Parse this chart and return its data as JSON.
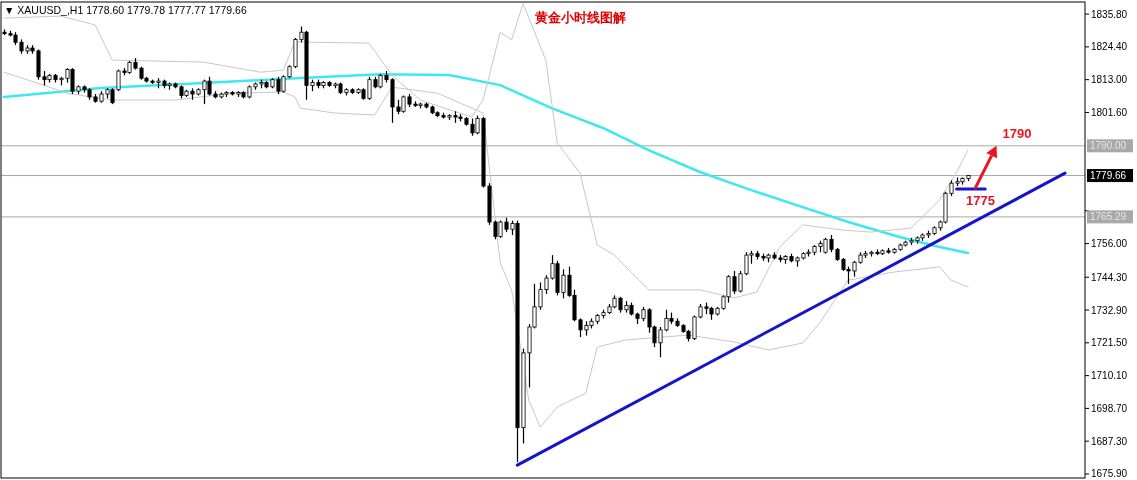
{
  "chart_data": {
    "type": "candlestick",
    "title": "黄金小时线图解",
    "annotations": [
      "▼ XAUUSD_,H1  1778.60 1779.78 1777.77 1779.66",
      {
        "text": "1790",
        "y": 1790
      },
      {
        "text": "1775",
        "y": 1775
      }
    ],
    "categories": [
      null,
      null,
      null,
      null,
      null,
      null,
      null,
      null,
      null,
      null,
      null,
      null,
      null,
      null,
      null,
      null,
      null,
      null,
      null,
      null,
      null,
      null,
      null,
      null,
      null,
      null,
      null,
      null,
      null,
      null,
      null,
      null,
      null,
      null,
      null,
      null,
      null,
      null,
      null,
      null,
      null,
      null,
      null,
      null,
      null,
      null,
      null,
      null,
      null,
      null,
      null,
      null,
      null,
      null,
      null,
      null,
      null,
      null,
      null,
      null,
      null,
      null,
      null,
      null,
      null,
      null,
      null,
      null,
      null,
      null,
      null,
      null,
      null,
      null,
      null,
      null,
      null,
      null,
      null,
      null,
      null,
      null,
      null,
      null,
      null,
      null,
      null,
      null,
      null,
      null,
      null,
      null,
      null,
      null,
      null,
      null,
      null,
      null,
      null,
      null,
      null,
      null,
      null,
      null,
      null,
      null,
      null,
      null,
      null,
      null,
      null,
      null,
      null,
      null,
      null,
      null,
      null,
      null,
      null,
      null,
      null,
      null,
      null,
      null,
      null,
      null,
      null,
      null,
      null,
      null,
      null,
      null,
      null,
      null,
      null,
      null,
      null,
      null,
      null,
      null,
      null,
      null,
      null,
      null,
      null,
      null,
      null,
      null,
      null,
      null,
      null,
      null,
      null,
      null,
      null,
      null,
      null,
      null,
      null,
      null,
      null,
      null,
      null,
      null,
      null,
      null,
      null,
      null,
      null,
      null,
      null,
      null,
      null,
      null,
      null,
      null,
      null,
      null,
      null,
      null,
      null,
      null,
      null,
      null,
      null,
      null,
      null,
      null,
      null,
      null
    ],
    "ohlc": [
      [
        1829.5,
        1830.5,
        1828.5,
        1829.0
      ],
      [
        1829,
        1830,
        1828,
        1828.5
      ],
      [
        1828.5,
        1829.5,
        1825,
        1826
      ],
      [
        1826,
        1827,
        1822,
        1823
      ],
      [
        1823,
        1825,
        1822,
        1824
      ],
      [
        1824,
        1825,
        1822,
        1823
      ],
      [
        1823,
        1823.5,
        1813,
        1814
      ],
      [
        1814,
        1816,
        1811,
        1813
      ],
      [
        1813,
        1815,
        1812,
        1814.5
      ],
      [
        1814.5,
        1815,
        1812,
        1813
      ],
      [
        1813,
        1814,
        1811,
        1813.5
      ],
      [
        1813.5,
        1817,
        1812,
        1816.5
      ],
      [
        1816.5,
        1817,
        1808,
        1809
      ],
      [
        1809,
        1811,
        1808,
        1810.5
      ],
      [
        1810.5,
        1811,
        1808.5,
        1809.5
      ],
      [
        1809.5,
        1810,
        1806,
        1807
      ],
      [
        1807,
        1808,
        1805,
        1805.5
      ],
      [
        1805.5,
        1809,
        1805,
        1808
      ],
      [
        1808,
        1810,
        1806.5,
        1809.5
      ],
      [
        1809.5,
        1810,
        1804.5,
        1805
      ],
      [
        1809.5,
        1816.5,
        1809,
        1816
      ],
      [
        1816,
        1817,
        1814.5,
        1815.5
      ],
      [
        1815.5,
        1819.5,
        1815,
        1819
      ],
      [
        1819,
        1820.5,
        1816.5,
        1817
      ],
      [
        1817,
        1817.5,
        1813,
        1813.5
      ],
      [
        1813.5,
        1814,
        1812,
        1812.5
      ],
      [
        1812.5,
        1813,
        1811.5,
        1812
      ],
      [
        1812,
        1813.5,
        1810,
        1812.5
      ],
      [
        1812.5,
        1813,
        1810,
        1811
      ],
      [
        1811,
        1812,
        1809.5,
        1811.5
      ],
      [
        1811.5,
        1812,
        1810,
        1810.5
      ],
      [
        1810.5,
        1811,
        1806.5,
        1807.5
      ],
      [
        1807.5,
        1809.5,
        1807,
        1809
      ],
      [
        1809,
        1810,
        1806,
        1808
      ],
      [
        1808,
        1810,
        1807.5,
        1809.5
      ],
      [
        1809.5,
        1813,
        1804.5,
        1812.5
      ],
      [
        1812.5,
        1814,
        1807.5,
        1808
      ],
      [
        1808,
        1809,
        1806.5,
        1807
      ],
      [
        1807,
        1808.5,
        1806.5,
        1808
      ],
      [
        1808,
        1809,
        1807,
        1808.5
      ],
      [
        1808.5,
        1809,
        1807.5,
        1808
      ],
      [
        1808,
        1809,
        1807,
        1808.5
      ],
      [
        1808.5,
        1809,
        1806.5,
        1807
      ],
      [
        1807,
        1811,
        1806.5,
        1810.5
      ],
      [
        1810.5,
        1812,
        1809.5,
        1811.5
      ],
      [
        1811.5,
        1813,
        1810,
        1812
      ],
      [
        1812,
        1812.5,
        1810,
        1810.5
      ],
      [
        1810.5,
        1813.5,
        1810,
        1813
      ],
      [
        1813,
        1814,
        1808,
        1809
      ],
      [
        1809,
        1814.5,
        1808.5,
        1814
      ],
      [
        1814,
        1818,
        1813.5,
        1817.5
      ],
      [
        1817.5,
        1827.5,
        1817,
        1827
      ],
      [
        1827,
        1831.5,
        1826,
        1829.5
      ],
      [
        1829.5,
        1830,
        1806,
        1811
      ],
      [
        1811,
        1813,
        1809,
        1812
      ],
      [
        1812,
        1813,
        1810,
        1811
      ],
      [
        1811,
        1812.5,
        1810,
        1812
      ],
      [
        1812,
        1812.5,
        1810.5,
        1811
      ],
      [
        1811,
        1812,
        1810,
        1811.5
      ],
      [
        1811.5,
        1812,
        1808,
        1808.5
      ],
      [
        1808.5,
        1810,
        1807.5,
        1809.5
      ],
      [
        1809.5,
        1810,
        1808,
        1808.5
      ],
      [
        1808.5,
        1810,
        1808,
        1809.5
      ],
      [
        1809.5,
        1810,
        1806,
        1806.5
      ],
      [
        1806.5,
        1814,
        1806,
        1813
      ],
      [
        1813,
        1814,
        1810,
        1810.5
      ],
      [
        1810.5,
        1815,
        1810,
        1814.5
      ],
      [
        1814.5,
        1816,
        1812,
        1813
      ],
      [
        1813,
        1813.5,
        1798,
        1803.5
      ],
      [
        1803.5,
        1806,
        1801,
        1802
      ],
      [
        1802,
        1807.5,
        1801.5,
        1807
      ],
      [
        1807,
        1808,
        1803.5,
        1804.5
      ],
      [
        1804.5,
        1805.5,
        1803.5,
        1804
      ],
      [
        1804,
        1805,
        1803,
        1804.5
      ],
      [
        1804.5,
        1805,
        1803,
        1803.5
      ],
      [
        1803.5,
        1804,
        1801,
        1801.5
      ],
      [
        1801.5,
        1802,
        1800,
        1800.5
      ],
      [
        1800.5,
        1801.5,
        1799.5,
        1800
      ],
      [
        1800,
        1801,
        1799,
        1800.5
      ],
      [
        1800.5,
        1802,
        1798,
        1800
      ],
      [
        1800,
        1801,
        1798.5,
        1799.5
      ],
      [
        1799.5,
        1800,
        1797,
        1797.5
      ],
      [
        1797.5,
        1799.5,
        1793.5,
        1794.5
      ],
      [
        1794.5,
        1800.5,
        1794,
        1799.5
      ],
      [
        1799.5,
        1800,
        1775.5,
        1776
      ],
      [
        1776,
        1777,
        1762.5,
        1763.5
      ],
      [
        1763.5,
        1764,
        1757.5,
        1758.5
      ],
      [
        1758.5,
        1764,
        1758,
        1763.5
      ],
      [
        1763.5,
        1765,
        1760,
        1761
      ],
      [
        1761,
        1764,
        1759,
        1763
      ],
      [
        1763,
        1764,
        1680,
        1692
      ],
      [
        1692,
        1719.5,
        1686.5,
        1718
      ],
      [
        1718,
        1728,
        1706,
        1727
      ],
      [
        1727,
        1742,
        1726.5,
        1734
      ],
      [
        1734,
        1742.5,
        1733,
        1740
      ],
      [
        1740,
        1745,
        1738.5,
        1744
      ],
      [
        1744,
        1752,
        1743.5,
        1749
      ],
      [
        1749,
        1750,
        1738,
        1739
      ],
      [
        1739,
        1747,
        1737,
        1745
      ],
      [
        1745,
        1748,
        1737.5,
        1738
      ],
      [
        1738,
        1740,
        1729,
        1729.5
      ],
      [
        1729.5,
        1730,
        1723.5,
        1726
      ],
      [
        1726,
        1729,
        1724,
        1727.5
      ],
      [
        1727.5,
        1730,
        1726.5,
        1729
      ],
      [
        1729,
        1731.5,
        1728,
        1731
      ],
      [
        1731,
        1733,
        1730,
        1732
      ],
      [
        1732,
        1735,
        1731.5,
        1734
      ],
      [
        1734,
        1738,
        1733.5,
        1737
      ],
      [
        1737,
        1737.5,
        1732,
        1733
      ],
      [
        1733,
        1736,
        1732,
        1734.5
      ],
      [
        1734.5,
        1735.5,
        1731,
        1731.5
      ],
      [
        1731.5,
        1732,
        1728,
        1730
      ],
      [
        1730,
        1734,
        1729,
        1733
      ],
      [
        1733,
        1733.5,
        1725,
        1727
      ],
      [
        1727,
        1727.5,
        1720,
        1721.5
      ],
      [
        1721.5,
        1727,
        1716.5,
        1726
      ],
      [
        1726,
        1733,
        1725.5,
        1730
      ],
      [
        1730,
        1732,
        1728,
        1729
      ],
      [
        1729,
        1730,
        1727,
        1727.5
      ],
      [
        1727.5,
        1728,
        1725,
        1725.5
      ],
      [
        1725.5,
        1726,
        1722,
        1723
      ],
      [
        1723,
        1731,
        1722.5,
        1730.5
      ],
      [
        1730.5,
        1735,
        1730,
        1734
      ],
      [
        1734,
        1735.5,
        1731.5,
        1733.5
      ],
      [
        1733.5,
        1734,
        1729.5,
        1731.5
      ],
      [
        1731.5,
        1734,
        1731,
        1733.5
      ],
      [
        1733.5,
        1738,
        1733,
        1737.5
      ],
      [
        1737.5,
        1745,
        1735.5,
        1744.5
      ],
      [
        1744.5,
        1746.5,
        1738.5,
        1739.5
      ],
      [
        1739.5,
        1746.5,
        1739,
        1745.5
      ],
      [
        1745.5,
        1753,
        1745,
        1752
      ],
      [
        1752,
        1753.5,
        1749,
        1752.5
      ],
      [
        1752.5,
        1753.5,
        1750.5,
        1751.5
      ],
      [
        1751.5,
        1752.5,
        1750,
        1751
      ],
      [
        1751,
        1752.5,
        1749.5,
        1752
      ],
      [
        1752,
        1753,
        1750.5,
        1751
      ],
      [
        1751,
        1752,
        1749.5,
        1750.5
      ],
      [
        1750.5,
        1752,
        1749,
        1751.5
      ],
      [
        1751.5,
        1752.5,
        1749.5,
        1750
      ],
      [
        1750,
        1751.5,
        1748,
        1751
      ],
      [
        1751,
        1753,
        1750.5,
        1752.5
      ],
      [
        1752.5,
        1754,
        1751.5,
        1753
      ],
      [
        1753,
        1755.5,
        1752,
        1755
      ],
      [
        1755,
        1757,
        1753,
        1756
      ],
      [
        1753,
        1758,
        1752.5,
        1757.5
      ],
      [
        1757.5,
        1759,
        1753,
        1754
      ],
      [
        1754,
        1754.5,
        1750,
        1750.5
      ],
      [
        1750.5,
        1751,
        1746.5,
        1747
      ],
      [
        1747,
        1748,
        1742,
        1746.5
      ],
      [
        1746.5,
        1750,
        1744.5,
        1749.5
      ],
      [
        1749.5,
        1753,
        1749,
        1752
      ],
      [
        1752,
        1753.5,
        1751,
        1752.5
      ],
      [
        1752.5,
        1753.5,
        1751.5,
        1753
      ],
      [
        1753,
        1754,
        1752,
        1752.5
      ],
      [
        1752.5,
        1754,
        1752,
        1753.5
      ],
      [
        1753.5,
        1754.5,
        1752.5,
        1753
      ],
      [
        1753,
        1754.5,
        1752.5,
        1754
      ],
      [
        1754,
        1756,
        1753.5,
        1755.5
      ],
      [
        1755.5,
        1757,
        1755,
        1756.5
      ],
      [
        1756.5,
        1758,
        1755.5,
        1757
      ],
      [
        1757,
        1758.5,
        1756,
        1758
      ],
      [
        1758,
        1759.5,
        1757,
        1759
      ],
      [
        1759,
        1760.5,
        1758,
        1759.5
      ],
      [
        1759.5,
        1762,
        1759,
        1761.5
      ],
      [
        1761.5,
        1764,
        1760.5,
        1763.5
      ],
      [
        1763.5,
        1774,
        1763,
        1773.5
      ],
      [
        1773.5,
        1778,
        1772.5,
        1777
      ],
      [
        1777,
        1779,
        1776,
        1777.5
      ],
      [
        1777.5,
        1779,
        1776.5,
        1778.6
      ],
      [
        1778.6,
        1779.78,
        1777.77,
        1779.66
      ],
      null,
      null,
      null,
      null,
      null,
      null,
      null,
      null,
      null,
      null,
      null,
      null,
      null,
      null,
      null,
      null,
      null,
      null,
      null,
      null
    ],
    "series": [
      {
        "type": "line",
        "color": "#3ee8f0",
        "values": [
          1807.0,
          null,
          null,
          null,
          null,
          null,
          null,
          null,
          null,
          null,
          null,
          null,
          null,
          null,
          null,
          null,
          null,
          1810.1,
          null,
          null,
          null,
          null,
          null,
          null,
          null,
          null,
          null,
          null,
          null,
          null,
          null,
          null,
          null,
          null,
          null,
          1811.8,
          null,
          null,
          null,
          null,
          null,
          null,
          null,
          null,
          null,
          null,
          null,
          null,
          null,
          null,
          null,
          null,
          1813.6,
          null,
          null,
          null,
          null,
          null,
          null,
          null,
          null,
          null,
          null,
          null,
          null,
          null,
          1814.9,
          null,
          null,
          null,
          null,
          null,
          null,
          null,
          null,
          null,
          null,
          null,
          1814.6,
          null,
          null,
          null,
          null,
          null,
          null,
          null,
          null,
          1811.1,
          null,
          null,
          null,
          null,
          null,
          null,
          null,
          null,
          1803.1,
          null,
          null,
          null,
          null,
          null,
          null,
          null,
          null,
          1796.2,
          null,
          null,
          null,
          null,
          null,
          null,
          null,
          1788.5,
          null,
          null,
          null,
          null,
          null,
          null,
          null,
          null,
          1780.9,
          null,
          null,
          null,
          null,
          null,
          null,
          null,
          null,
          1774.6,
          null,
          null,
          null,
          null,
          null,
          null,
          null,
          null,
          1768.7,
          null,
          null,
          null,
          null,
          null,
          null,
          null,
          1763.5,
          null,
          null,
          null,
          null,
          null,
          null,
          null,
          null,
          1758.3,
          null,
          null,
          null,
          null,
          null,
          null,
          1754.8,
          null,
          null,
          null,
          null,
          1752.7,
          null,
          null,
          null,
          null,
          null,
          null,
          null,
          null,
          null,
          null,
          null,
          null,
          null,
          null,
          null,
          null,
          null,
          null,
          null,
          null
        ]
      },
      {
        "type": "line",
        "color": "#c8c8c8",
        "values": [
          1834.4,
          null,
          null,
          null,
          null,
          null,
          null,
          null,
          null,
          null,
          1835.1,
          null,
          null,
          null,
          null,
          null,
          1832.0,
          null,
          null,
          1819.8,
          null,
          null,
          null,
          null,
          null,
          null,
          null,
          null,
          null,
          null,
          null,
          null,
          null,
          null,
          null,
          1819.1,
          null,
          null,
          null,
          null,
          null,
          null,
          null,
          null,
          null,
          1815.6,
          null,
          null,
          null,
          1816.3,
          null,
          1826.1,
          null,
          null,
          null,
          null,
          null,
          null,
          null,
          null,
          null,
          null,
          null,
          null,
          1825.7,
          null,
          null,
          null,
          1814.6,
          null,
          null,
          null,
          null,
          1805.9,
          null,
          null,
          null,
          null,
          null,
          null,
          null,
          null,
          1800.0,
          null,
          1805.9,
          null,
          null,
          1829.5,
          null,
          1826.8,
          null,
          1839.5,
          null,
          null,
          null,
          1819.8,
          null,
          1791.0,
          null,
          null,
          null,
          1780.5,
          null,
          null,
          1755.5,
          null,
          null,
          1752.0,
          null,
          null,
          null,
          null,
          null,
          1739.9,
          null,
          null,
          null,
          null,
          null,
          null,
          null,
          null,
          1739.9,
          null,
          null,
          null,
          null,
          null,
          1737.1,
          null,
          null,
          null,
          1739.2,
          null,
          null,
          null,
          1754.8,
          null,
          null,
          null,
          1762.5,
          null,
          null,
          null,
          null,
          null,
          null,
          1760.7,
          null,
          null,
          null,
          null,
          1760.0,
          null,
          null,
          null,
          null,
          null,
          null,
          1761.4,
          null,
          null,
          null,
          null,
          1771.1,
          null,
          null,
          1780.9,
          null,
          1788.5,
          null,
          null,
          null,
          null,
          null,
          null,
          null,
          null,
          null,
          null,
          null,
          null,
          null,
          null,
          null,
          null,
          null,
          null,
          null,
          null
        ]
      },
      {
        "type": "line",
        "color": "#c8c8c8",
        "values": [
          1815.6,
          null,
          null,
          null,
          null,
          null,
          null,
          null,
          1810.4,
          null,
          null,
          1808.3,
          null,
          null,
          null,
          null,
          null,
          null,
          null,
          1805.9,
          null,
          null,
          null,
          null,
          null,
          null,
          null,
          null,
          null,
          null,
          1805.9,
          null,
          null,
          null,
          null,
          null,
          null,
          null,
          null,
          null,
          1808.3,
          null,
          null,
          null,
          null,
          null,
          null,
          null,
          null,
          1808.7,
          null,
          1807.0,
          1803.1,
          null,
          null,
          null,
          null,
          null,
          1801.4,
          null,
          null,
          null,
          null,
          null,
          null,
          1800.7,
          null,
          null,
          1810.4,
          null,
          null,
          null,
          null,
          null,
          null,
          null,
          1808.3,
          null,
          null,
          null,
          null,
          null,
          null,
          null,
          1801.4,
          null,
          null,
          1749.3,
          null,
          1739.9,
          null,
          null,
          1701.6,
          null,
          1692.2,
          null,
          null,
          1699.2,
          null,
          null,
          null,
          null,
          1704.0,
          null,
          1720.0,
          null,
          null,
          null,
          null,
          1722.5,
          null,
          null,
          null,
          null,
          null,
          null,
          null,
          null,
          null,
          null,
          1724.2,
          null,
          null,
          null,
          null,
          null,
          null,
          null,
          1721.8,
          null,
          null,
          null,
          null,
          null,
          1719.0,
          null,
          null,
          null,
          null,
          null,
          1721.4,
          null,
          null,
          1728.4,
          null,
          null,
          null,
          null,
          1743.3,
          null,
          null,
          null,
          null,
          null,
          null,
          null,
          1746.1,
          null,
          null,
          null,
          null,
          null,
          null,
          null,
          1747.9,
          null,
          1743.3,
          null,
          null,
          1740.9,
          null,
          null,
          null,
          null,
          null,
          null,
          null,
          null,
          null,
          null,
          null,
          null,
          null,
          null,
          null,
          null,
          null,
          null,
          null,
          null
        ]
      },
      {
        "type": "line",
        "color": "#1414c8",
        "values": [
          null,
          null,
          null,
          null,
          null,
          null,
          null,
          null,
          null,
          null,
          null,
          null,
          null,
          null,
          null,
          null,
          null,
          null,
          null,
          null,
          null,
          null,
          null,
          null,
          null,
          null,
          null,
          null,
          null,
          null,
          null,
          null,
          null,
          null,
          null,
          null,
          null,
          null,
          null,
          null,
          null,
          null,
          null,
          null,
          null,
          null,
          null,
          null,
          null,
          null,
          null,
          null,
          null,
          null,
          null,
          null,
          null,
          null,
          null,
          null,
          null,
          null,
          null,
          null,
          null,
          null,
          null,
          null,
          null,
          null,
          null,
          null,
          null,
          null,
          null,
          null,
          null,
          null,
          null,
          null,
          null,
          null,
          null,
          null,
          null,
          null,
          null,
          null,
          null,
          null,
          1679.0,
          null,
          null,
          null,
          null,
          null,
          null,
          null,
          null,
          null,
          null,
          null,
          null,
          null,
          null,
          null,
          null,
          null,
          null,
          null,
          null,
          null,
          null,
          null,
          null,
          null,
          null,
          null,
          null,
          null,
          null,
          null,
          null,
          null,
          null,
          null,
          null,
          null,
          null,
          null,
          null,
          null,
          null,
          null,
          null,
          null,
          null,
          null,
          null,
          null,
          null,
          null,
          null,
          null,
          null,
          null,
          null,
          null,
          null,
          null,
          null,
          null,
          null,
          null,
          null,
          null,
          null,
          null,
          null,
          null,
          null,
          null,
          null,
          null,
          null,
          null,
          null,
          null,
          null,
          null,
          null,
          null,
          null,
          null,
          null,
          null,
          null,
          null,
          null,
          null,
          null,
          null,
          null,
          null,
          null,
          null,
          1780.5,
          null,
          null,
          null
        ]
      },
      {
        "type": "line",
        "color": "#1414c8",
        "values": [
          null,
          null,
          null,
          null,
          null,
          null,
          null,
          null,
          null,
          null,
          null,
          null,
          null,
          null,
          null,
          null,
          null,
          null,
          null,
          null,
          null,
          null,
          null,
          null,
          null,
          null,
          null,
          null,
          null,
          null,
          null,
          null,
          null,
          null,
          null,
          null,
          null,
          null,
          null,
          null,
          null,
          null,
          null,
          null,
          null,
          null,
          null,
          null,
          null,
          null,
          null,
          null,
          null,
          null,
          null,
          null,
          null,
          null,
          null,
          null,
          null,
          null,
          null,
          null,
          null,
          null,
          null,
          null,
          null,
          null,
          null,
          null,
          null,
          null,
          null,
          null,
          null,
          null,
          null,
          null,
          null,
          null,
          null,
          null,
          null,
          null,
          null,
          null,
          null,
          null,
          null,
          null,
          null,
          null,
          null,
          null,
          null,
          null,
          null,
          null,
          null,
          null,
          null,
          null,
          null,
          null,
          null,
          null,
          null,
          null,
          null,
          null,
          null,
          null,
          null,
          null,
          null,
          null,
          null,
          null,
          null,
          null,
          null,
          null,
          null,
          null,
          null,
          null,
          null,
          null,
          null,
          null,
          null,
          null,
          null,
          null,
          null,
          null,
          null,
          null,
          null,
          null,
          null,
          null,
          null,
          null,
          null,
          null,
          null,
          null,
          null,
          null,
          null,
          null,
          null,
          null,
          null,
          null,
          null,
          null,
          null,
          null,
          null,
          null,
          null,
          null,
          null,
          1775,
          null,
          null,
          null,
          null,
          1775,
          null,
          null,
          null,
          null,
          null,
          null,
          null,
          null,
          null,
          null,
          null,
          null,
          null,
          null,
          null,
          null,
          null
        ]
      }
    ],
    "ylim": [
      1674.5,
      1840.0
    ],
    "yticks": [
      {
        "value": 1835.8,
        "label": "1835.80"
      },
      {
        "value": 1824.4,
        "label": "1824.40"
      },
      {
        "value": 1813.0,
        "label": "1813.00"
      },
      {
        "value": 1801.6,
        "label": "1801.60"
      },
      {
        "value": 1767.4,
        "label": null
      },
      {
        "value": 1756.0,
        "label": "1756.00"
      },
      {
        "value": 1744.3,
        "label": "1744.30"
      },
      {
        "value": 1732.9,
        "label": "1732.90"
      },
      {
        "value": 1721.5,
        "label": "1721.50"
      },
      {
        "value": 1710.1,
        "label": "1710.10"
      },
      {
        "value": 1698.7,
        "label": "1698.70"
      },
      {
        "value": 1687.3,
        "label": "1687.30"
      },
      {
        "value": 1675.9,
        "label": "1675.90"
      }
    ],
    "ref_lines": [
      {
        "axis": "y",
        "value": 1790.0,
        "label": "1790.00",
        "color": "#a8a8a8"
      },
      {
        "axis": "y",
        "value": 1779.66,
        "label": "1779.66",
        "color": "#a8a8a8"
      },
      {
        "axis": "y",
        "value": 1765.29,
        "label": "1765.29",
        "color": "#a8a8a8"
      }
    ],
    "grid": false
  }
}
